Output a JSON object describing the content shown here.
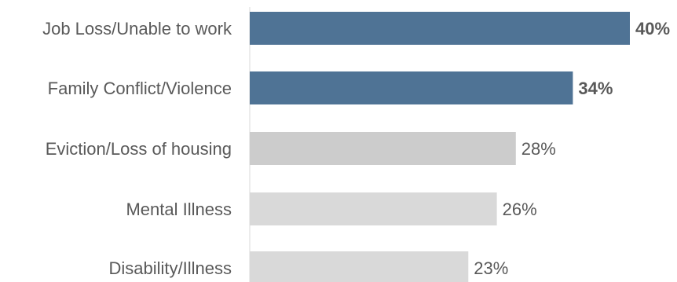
{
  "chart_data": {
    "type": "bar",
    "orientation": "horizontal",
    "title": "",
    "xlabel": "",
    "ylabel": "",
    "xlim": [
      0,
      40
    ],
    "grid": false,
    "legend": "none",
    "categories": [
      "Job Loss/Unable to work",
      "Family Conflict/Violence",
      "Eviction/Loss of housing",
      "Mental Illness",
      "Disability/Illness"
    ],
    "values": [
      40,
      34,
      28,
      26,
      23
    ],
    "value_labels": [
      "40%",
      "34%",
      "28%",
      "26%",
      "23%"
    ],
    "highlighted": [
      true,
      true,
      false,
      false,
      false
    ],
    "colors": {
      "highlight": "#4f7395",
      "bar_3": "#cccccc",
      "bar_default": "#d9d9d9",
      "axis": "#d9d9d9",
      "text": "#595959"
    }
  }
}
